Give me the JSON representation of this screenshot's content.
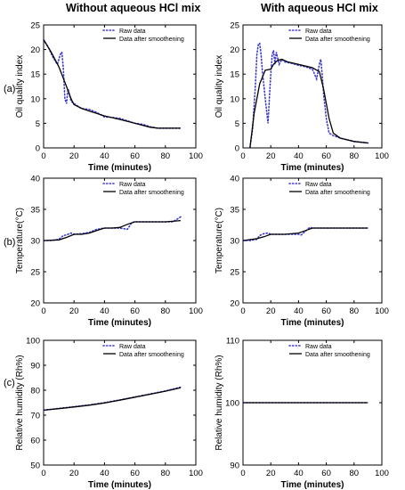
{
  "column_titles": [
    "Without aqueous HCl mix",
    "With aqueous HCl mix"
  ],
  "row_labels": [
    "(a)",
    "(b)",
    "(c)"
  ],
  "legend": {
    "raw": "Raw data",
    "smooth": "Data after smoothening"
  },
  "colors": {
    "raw": "#3a3ad0",
    "smooth": "#000000",
    "axis": "#000000"
  },
  "chart_data": [
    {
      "type": "line",
      "id": "a-left",
      "xlabel": "Time (minutes)",
      "ylabel": "Oil quality index",
      "xlim": [
        0,
        100
      ],
      "ylim": [
        0,
        25
      ],
      "xticks": [
        0,
        20,
        40,
        60,
        80,
        100
      ],
      "yticks": [
        0,
        5,
        10,
        15,
        20,
        25
      ],
      "series": [
        {
          "name": "Data after smoothening",
          "style": "solid",
          "x": [
            0,
            5,
            10,
            15,
            18,
            20,
            25,
            30,
            40,
            50,
            60,
            70,
            75,
            80,
            90
          ],
          "y": [
            22,
            19.5,
            16.5,
            12.5,
            10,
            8.8,
            8,
            7.5,
            6.5,
            5.8,
            5,
            4.2,
            4,
            4,
            4
          ]
        },
        {
          "name": "Raw data",
          "style": "dotted",
          "x": [
            0,
            3,
            6,
            9,
            11,
            12,
            13,
            14,
            15,
            16,
            18,
            20,
            25,
            30,
            35,
            40,
            45,
            50,
            55,
            60,
            65,
            70,
            75,
            80,
            85,
            90
          ],
          "y": [
            22,
            20.5,
            18.5,
            17,
            19,
            19.5,
            16,
            10,
            9,
            12,
            9.5,
            9,
            8,
            7.8,
            7.2,
            6.3,
            6.2,
            6,
            5.5,
            5,
            4.8,
            4.3,
            4,
            4,
            4,
            4
          ]
        }
      ]
    },
    {
      "type": "line",
      "id": "a-right",
      "xlabel": "Time (minutes)",
      "ylabel": "Oil quality index",
      "xlim": [
        0,
        100
      ],
      "ylim": [
        0,
        25
      ],
      "xticks": [
        0,
        20,
        40,
        60,
        80,
        100
      ],
      "yticks": [
        0,
        5,
        10,
        15,
        20,
        25
      ],
      "series": [
        {
          "name": "Data after smoothening",
          "style": "solid",
          "x": [
            5,
            8,
            12,
            16,
            20,
            22,
            25,
            28,
            32,
            40,
            50,
            55,
            58,
            62,
            65,
            70,
            80,
            90
          ],
          "y": [
            0,
            7,
            13,
            15.8,
            16,
            17,
            17.8,
            18,
            17.5,
            17,
            16.3,
            15.5,
            12,
            6,
            3,
            2,
            1.3,
            1
          ]
        },
        {
          "name": "Raw data",
          "style": "dotted",
          "x": [
            5,
            7,
            9,
            10,
            11,
            12,
            13,
            14,
            16,
            18,
            19,
            20,
            21,
            22,
            23,
            24,
            26,
            28,
            30,
            35,
            40,
            45,
            50,
            53,
            55,
            56,
            57,
            58,
            60,
            62,
            65,
            70,
            80,
            90
          ],
          "y": [
            0,
            4,
            13,
            19,
            21,
            21.3,
            19,
            15.5,
            10,
            5,
            10,
            15,
            19,
            19.8,
            17,
            19.5,
            17,
            18,
            17.5,
            17.2,
            16.8,
            16.5,
            16,
            14,
            17,
            18,
            15,
            11,
            6,
            3,
            2.5,
            2,
            1.3,
            1
          ]
        }
      ]
    },
    {
      "type": "line",
      "id": "b-left",
      "xlabel": "Time (minutes)",
      "ylabel": "Temperature(°C)",
      "xlim": [
        0,
        100
      ],
      "ylim": [
        20,
        40
      ],
      "xticks": [
        0,
        20,
        40,
        60,
        80,
        100
      ],
      "yticks": [
        20,
        25,
        30,
        35,
        40
      ],
      "series": [
        {
          "name": "Data after smoothening",
          "style": "solid",
          "x": [
            0,
            10,
            15,
            20,
            25,
            30,
            35,
            40,
            45,
            50,
            55,
            60,
            70,
            80,
            90
          ],
          "y": [
            30,
            30.1,
            30.5,
            31,
            31,
            31.2,
            31.6,
            32,
            32,
            32.1,
            32.6,
            33,
            33,
            33,
            33.2
          ]
        },
        {
          "name": "Raw data",
          "style": "dotted",
          "x": [
            0,
            5,
            10,
            13,
            15,
            18,
            20,
            25,
            30,
            35,
            40,
            45,
            50,
            55,
            58,
            60,
            65,
            70,
            75,
            80,
            85,
            90
          ],
          "y": [
            30,
            30,
            30.2,
            30.8,
            30.9,
            31.2,
            31,
            31.1,
            31.3,
            31.8,
            32,
            32,
            32,
            31.8,
            32.9,
            33,
            33,
            33,
            33,
            33,
            33,
            33.8
          ]
        }
      ]
    },
    {
      "type": "line",
      "id": "b-right",
      "xlabel": "Time (minutes)",
      "ylabel": "Temperature(°C)",
      "xlim": [
        0,
        100
      ],
      "ylim": [
        20,
        40
      ],
      "xticks": [
        0,
        20,
        40,
        60,
        80,
        100
      ],
      "yticks": [
        20,
        25,
        30,
        35,
        40
      ],
      "series": [
        {
          "name": "Data after smoothening",
          "style": "solid",
          "x": [
            0,
            10,
            15,
            20,
            25,
            30,
            40,
            45,
            50,
            60,
            70,
            80,
            90
          ],
          "y": [
            30,
            30.3,
            30.6,
            31,
            31,
            31,
            31.2,
            31.6,
            32,
            32,
            32,
            32,
            32
          ]
        },
        {
          "name": "Raw data",
          "style": "dotted",
          "x": [
            0,
            5,
            10,
            12,
            15,
            18,
            20,
            25,
            30,
            35,
            40,
            42,
            45,
            48,
            50,
            60,
            70,
            80,
            90
          ],
          "y": [
            30,
            30,
            30.2,
            30.8,
            31.1,
            31.2,
            31,
            31,
            31,
            31,
            31,
            30.9,
            31.5,
            32.1,
            32,
            32,
            32,
            32,
            32
          ]
        }
      ]
    },
    {
      "type": "line",
      "id": "c-left",
      "xlabel": "Time (minutes)",
      "ylabel": "Relative humidity (Rh%)",
      "xlim": [
        0,
        100
      ],
      "ylim": [
        50,
        100
      ],
      "xticks": [
        0,
        20,
        40,
        60,
        80,
        100
      ],
      "yticks": [
        50,
        60,
        70,
        80,
        90,
        100
      ],
      "series": [
        {
          "name": "Data after smoothening",
          "style": "solid",
          "x": [
            0,
            10,
            20,
            30,
            40,
            50,
            60,
            70,
            80,
            90
          ],
          "y": [
            72,
            72.6,
            73.3,
            74,
            74.9,
            76,
            77.2,
            78.4,
            79.6,
            81
          ]
        },
        {
          "name": "Raw data",
          "style": "dotted",
          "x": [
            0,
            10,
            20,
            30,
            40,
            50,
            60,
            70,
            80,
            90
          ],
          "y": [
            72,
            72.7,
            73.4,
            74.1,
            75,
            76.1,
            77.3,
            78.5,
            79.7,
            81.2
          ]
        }
      ]
    },
    {
      "type": "line",
      "id": "c-right",
      "xlabel": "Time (minutes)",
      "ylabel": "Relative humidity (Rh%)",
      "xlim": [
        0,
        100
      ],
      "ylim": [
        90,
        110
      ],
      "xticks": [
        0,
        20,
        40,
        60,
        80,
        100
      ],
      "yticks": [
        90,
        100,
        110
      ],
      "series": [
        {
          "name": "Data after smoothening",
          "style": "solid",
          "x": [
            0,
            90
          ],
          "y": [
            100,
            100
          ]
        },
        {
          "name": "Raw data",
          "style": "dotted",
          "x": [
            0,
            90
          ],
          "y": [
            100,
            100
          ]
        }
      ]
    }
  ]
}
